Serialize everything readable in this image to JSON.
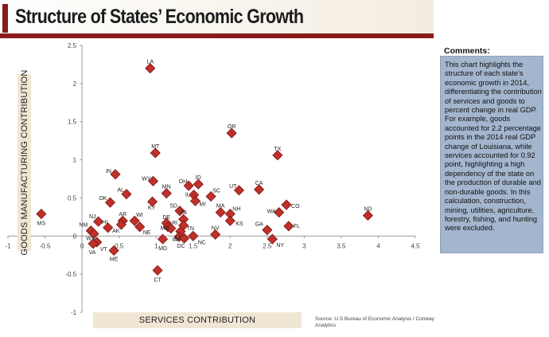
{
  "title": "Structure of States’ Economic Growth",
  "source": "Source: U.S Bureau of Economic Analysis / Conway Analytics",
  "comments": {
    "heading": "Comments:",
    "text": "This chart highlights the structure of each state’s economic growth in 2014, differentiating the contribution of services and goods to percent change in real GDP. For example, goods accounted for 2.2 percentage points in the 2014 real GDP change of Louisiana, while services accounted for 0.92 point, highlighting a high dependency of the state on the production of durable and non-durable goods. In this calculation, construction, mining, utilities, agriculture, forestry, fishing, and hunting were excluded."
  },
  "colors": {
    "marker": "#c0302a",
    "marker_edge": "#7a1512",
    "accent": "#8a1a1a",
    "comments_bg": "#a3b6cd",
    "label_band": "#f0e6d4"
  },
  "chart_data": {
    "type": "scatter",
    "xlabel": "SERVICES CONTRIBUTION",
    "ylabel": "GOODS MANUFACTURING CONTRIBUTION",
    "xlim": [
      -1,
      4.5
    ],
    "ylim": [
      -1,
      2.5
    ],
    "xticks": [
      "-1",
      "-0.5",
      "0",
      "0.5",
      "1",
      "1.5",
      "2",
      "2.5",
      "3",
      "3.5",
      "4",
      "4.5"
    ],
    "xtick_values": [
      -1,
      -0.5,
      0,
      0.5,
      1,
      1.5,
      2,
      2.5,
      3,
      3.5,
      4,
      4.5
    ],
    "yticks": [
      "2.5",
      "2",
      "1.5",
      "1",
      "0.5",
      "0",
      "-0.5",
      "-1"
    ],
    "ytick_values": [
      2.5,
      2,
      1.5,
      1,
      0.5,
      0,
      -0.5,
      -1
    ],
    "grid": false,
    "points": [
      {
        "label": "LA",
        "x": 0.92,
        "y": 2.2
      },
      {
        "label": "OR",
        "x": 2.02,
        "y": 1.35
      },
      {
        "label": "MT",
        "x": 0.99,
        "y": 1.09
      },
      {
        "label": "TX",
        "x": 2.64,
        "y": 1.06
      },
      {
        "label": "IN",
        "x": 0.45,
        "y": 0.81
      },
      {
        "label": "WY",
        "x": 0.96,
        "y": 0.72
      },
      {
        "label": "OH",
        "x": 1.44,
        "y": 0.66
      },
      {
        "label": "ID",
        "x": 1.57,
        "y": 0.68
      },
      {
        "label": "AL",
        "x": 0.6,
        "y": 0.55
      },
      {
        "label": "MN",
        "x": 1.14,
        "y": 0.56
      },
      {
        "label": "UT",
        "x": 2.12,
        "y": 0.6
      },
      {
        "label": "CA",
        "x": 2.39,
        "y": 0.61
      },
      {
        "label": "IL",
        "x": 1.51,
        "y": 0.54
      },
      {
        "label": "SC",
        "x": 1.74,
        "y": 0.52
      },
      {
        "label": "OK",
        "x": 0.38,
        "y": 0.44
      },
      {
        "label": "KY",
        "x": 0.95,
        "y": 0.45
      },
      {
        "label": "MI",
        "x": 1.53,
        "y": 0.46
      },
      {
        "label": "CO",
        "x": 2.76,
        "y": 0.41
      },
      {
        "label": "ND",
        "x": 3.86,
        "y": 0.27
      },
      {
        "label": "SD",
        "x": 1.32,
        "y": 0.33
      },
      {
        "label": "MA",
        "x": 1.87,
        "y": 0.31
      },
      {
        "label": "NH",
        "x": 2.0,
        "y": 0.29
      },
      {
        "label": "WA",
        "x": 2.66,
        "y": 0.31
      },
      {
        "label": "MS",
        "x": -0.55,
        "y": 0.29
      },
      {
        "label": "NJ",
        "x": 0.22,
        "y": 0.19
      },
      {
        "label": "AR",
        "x": 0.55,
        "y": 0.2
      },
      {
        "label": "WI",
        "x": 0.71,
        "y": 0.2
      },
      {
        "label": "PA",
        "x": 1.37,
        "y": 0.22
      },
      {
        "label": "KS",
        "x": 2.0,
        "y": 0.2
      },
      {
        "label": "DE",
        "x": 1.14,
        "y": 0.17
      },
      {
        "label": "RI",
        "x": 1.16,
        "y": 0.12
      },
      {
        "label": "TN",
        "x": 1.37,
        "y": 0.14
      },
      {
        "label": "FL",
        "x": 2.79,
        "y": 0.13
      },
      {
        "label": "HI",
        "x": 0.35,
        "y": 0.11
      },
      {
        "label": "NE",
        "x": 0.78,
        "y": 0.12
      },
      {
        "label": "AK",
        "x": 0.53,
        "y": 0.15
      },
      {
        "label": "NM",
        "x": 0.12,
        "y": 0.07
      },
      {
        "label": "GA",
        "x": 2.5,
        "y": 0.08
      },
      {
        "label": "MO",
        "x": 1.2,
        "y": 0.1
      },
      {
        "label": "AZ",
        "x": 1.33,
        "y": 0.06
      },
      {
        "label": "NV",
        "x": 1.8,
        "y": 0.02
      },
      {
        "label": "WV",
        "x": 0.16,
        "y": 0.03
      },
      {
        "label": "IA",
        "x": 1.31,
        "y": -0.01
      },
      {
        "label": "DC",
        "x": 1.38,
        "y": -0.03
      },
      {
        "label": "NC",
        "x": 1.5,
        "y": 0.0
      },
      {
        "label": "MD",
        "x": 1.09,
        "y": -0.04
      },
      {
        "label": "NY",
        "x": 2.57,
        "y": -0.04
      },
      {
        "label": "VT",
        "x": 0.2,
        "y": -0.08
      },
      {
        "label": "VA",
        "x": 0.15,
        "y": -0.1
      },
      {
        "label": "ME",
        "x": 0.43,
        "y": -0.19
      },
      {
        "label": "CT",
        "x": 1.02,
        "y": -0.45
      }
    ],
    "point_labels": [
      {
        "label": "LA",
        "dx": 0,
        "dy": -8,
        "anchor": "middle"
      },
      {
        "label": "OR",
        "dx": 0,
        "dy": -8,
        "anchor": "middle"
      },
      {
        "label": "MT",
        "dx": 0,
        "dy": -8,
        "anchor": "middle"
      },
      {
        "label": "TX",
        "dx": 0,
        "dy": -8,
        "anchor": "middle"
      },
      {
        "label": "IN",
        "dx": -5,
        "dy": -4,
        "anchor": "end"
      },
      {
        "label": "WY",
        "dx": -3,
        "dy": -3,
        "anchor": "end"
      },
      {
        "label": "OH",
        "dx": -2,
        "dy": -5,
        "anchor": "end"
      },
      {
        "label": "ID",
        "dx": 0,
        "dy": -8,
        "anchor": "middle"
      },
      {
        "label": "AL",
        "dx": -3,
        "dy": -5,
        "anchor": "end"
      },
      {
        "label": "MN",
        "dx": 0,
        "dy": -8,
        "anchor": "middle"
      },
      {
        "label": "UT",
        "dx": -3,
        "dy": -5,
        "anchor": "end"
      },
      {
        "label": "CA",
        "dx": 0,
        "dy": -8,
        "anchor": "middle"
      },
      {
        "label": "IL",
        "dx": -5,
        "dy": 0,
        "anchor": "end"
      },
      {
        "label": "SC",
        "dx": 2,
        "dy": -7,
        "anchor": "start"
      },
      {
        "label": "OK",
        "dx": -4,
        "dy": -5,
        "anchor": "end"
      },
      {
        "label": "KY",
        "dx": -1,
        "dy": 8,
        "anchor": "middle"
      },
      {
        "label": "MI",
        "dx": 5,
        "dy": 4,
        "anchor": "start"
      },
      {
        "label": "CO",
        "dx": 6,
        "dy": 2,
        "anchor": "start"
      },
      {
        "label": "ND",
        "dx": 0,
        "dy": -8,
        "anchor": "middle"
      },
      {
        "label": "SD",
        "dx": -3,
        "dy": -6,
        "anchor": "end"
      },
      {
        "label": "MA",
        "dx": 0,
        "dy": -8,
        "anchor": "middle"
      },
      {
        "label": "NH",
        "dx": 3,
        "dy": -6,
        "anchor": "start"
      },
      {
        "label": "WA",
        "dx": -4,
        "dy": -1,
        "anchor": "end"
      },
      {
        "label": "MS",
        "dx": 0,
        "dy": 12,
        "anchor": "middle"
      },
      {
        "label": "NJ",
        "dx": -3,
        "dy": -6,
        "anchor": "end"
      },
      {
        "label": "AR",
        "dx": 0,
        "dy": -8,
        "anchor": "middle"
      },
      {
        "label": "WI",
        "dx": 2,
        "dy": -7,
        "anchor": "start"
      },
      {
        "label": "PA",
        "dx": 0,
        "dy": -8,
        "anchor": "middle"
      },
      {
        "label": "KS",
        "dx": 7,
        "dy": 4,
        "anchor": "start"
      },
      {
        "label": "DE",
        "dx": 0,
        "dy": -7,
        "anchor": "middle"
      },
      {
        "label": "RI",
        "dx": 5,
        "dy": -5,
        "anchor": "start"
      },
      {
        "label": "TN",
        "dx": 4,
        "dy": 4,
        "anchor": "start"
      },
      {
        "label": "FL",
        "dx": 6,
        "dy": 0,
        "anchor": "start"
      },
      {
        "label": "HI",
        "dx": -4,
        "dy": -7,
        "anchor": "middle"
      },
      {
        "label": "NE",
        "dx": 4,
        "dy": 7,
        "anchor": "start"
      },
      {
        "label": "AK",
        "dx": -2,
        "dy": 8,
        "anchor": "end"
      },
      {
        "label": "NM",
        "dx": -4,
        "dy": -7,
        "anchor": "end"
      },
      {
        "label": "GA",
        "dx": -5,
        "dy": -7,
        "anchor": "end"
      },
      {
        "label": "MO",
        "dx": -2,
        "dy": 0,
        "anchor": "end"
      },
      {
        "label": "AZ",
        "dx": -4,
        "dy": 8,
        "anchor": "middle"
      },
      {
        "label": "NV",
        "dx": 0,
        "dy": -8,
        "anchor": "middle"
      },
      {
        "label": "WV",
        "dx": -4,
        "dy": 6,
        "anchor": "middle"
      },
      {
        "label": "IA",
        "dx": -5,
        "dy": 4,
        "anchor": "middle"
      },
      {
        "label": "DC",
        "dx": -4,
        "dy": 10,
        "anchor": "middle"
      },
      {
        "label": "NC",
        "dx": 6,
        "dy": 8,
        "anchor": "start"
      },
      {
        "label": "MD",
        "dx": 0,
        "dy": 12,
        "anchor": "middle"
      },
      {
        "label": "NY",
        "dx": 5,
        "dy": 8,
        "anchor": "start"
      },
      {
        "label": "VT",
        "dx": 4,
        "dy": 9,
        "anchor": "start"
      },
      {
        "label": "VA",
        "dx": -1,
        "dy": 11,
        "anchor": "middle"
      },
      {
        "label": "ME",
        "dx": 0,
        "dy": 11,
        "anchor": "middle"
      },
      {
        "label": "CT",
        "dx": 0,
        "dy": 12,
        "anchor": "middle"
      }
    ]
  }
}
